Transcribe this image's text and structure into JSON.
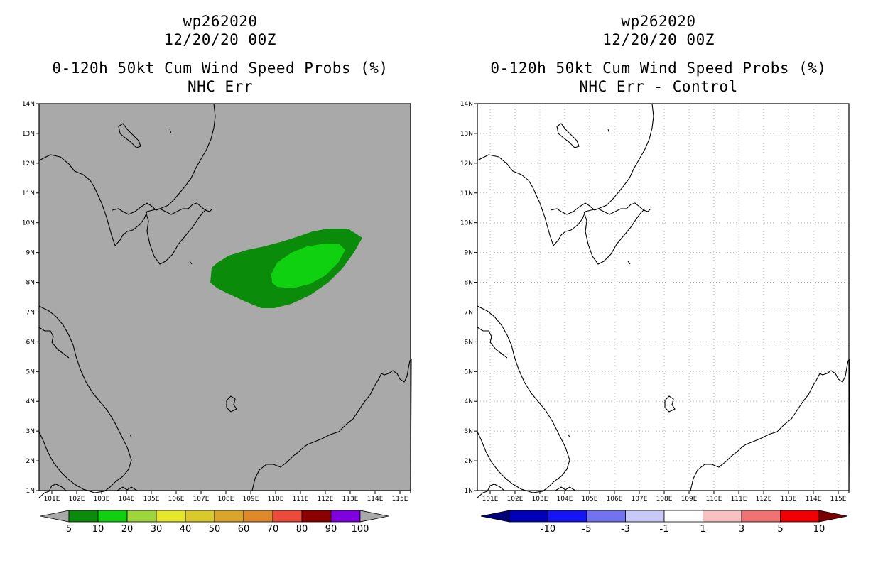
{
  "left_panel": {
    "storm_id": "wp262020",
    "datetime": "12/20/20 00Z",
    "product": "0-120h 50kt Cum Wind Speed Probs (%)",
    "subtitle": "NHC Err",
    "colorbar": {
      "labels": [
        "5",
        "10",
        "20",
        "30",
        "40",
        "50",
        "60",
        "70",
        "80",
        "90",
        "100"
      ],
      "colors": [
        "#0a8c0a",
        "#0fd10f",
        "#9cd63a",
        "#e6e62b",
        "#d9c92b",
        "#dba52b",
        "#df8a2a",
        "#ee4a3a",
        "#8c0000",
        "#8000e0"
      ],
      "end_color": "#a9a9a9"
    }
  },
  "right_panel": {
    "storm_id": "wp262020",
    "datetime": "12/20/20 00Z",
    "product": "0-120h 50kt Cum Wind Speed Probs (%)",
    "subtitle": "NHC Err - Control",
    "colorbar": {
      "labels": [
        "-10",
        "-5",
        "-3",
        "-1",
        "1",
        "3",
        "5",
        "10"
      ],
      "colors": [
        "#0000b8",
        "#1414f5",
        "#7373ef",
        "#c9c9f7",
        "#ffffff",
        "#f9c2c2",
        "#f07373",
        "#f00000"
      ],
      "left_end": "#00007a",
      "right_end": "#7a0000"
    }
  },
  "map": {
    "lat_labels": [
      "14N",
      "13N",
      "12N",
      "11N",
      "10N",
      "9N",
      "8N",
      "7N",
      "6N",
      "5N",
      "4N",
      "3N",
      "2N",
      "1N"
    ],
    "lon_labels": [
      "101E",
      "102E",
      "103E",
      "104E",
      "105E",
      "106E",
      "107E",
      "108E",
      "109E",
      "110E",
      "111E",
      "112E",
      "113E",
      "114E",
      "115E"
    ],
    "background_left": "#a9a9a9",
    "background_right": "#ffffff",
    "prob_outer_color": "#0a8c0a",
    "prob_inner_color": "#0fd10f"
  }
}
